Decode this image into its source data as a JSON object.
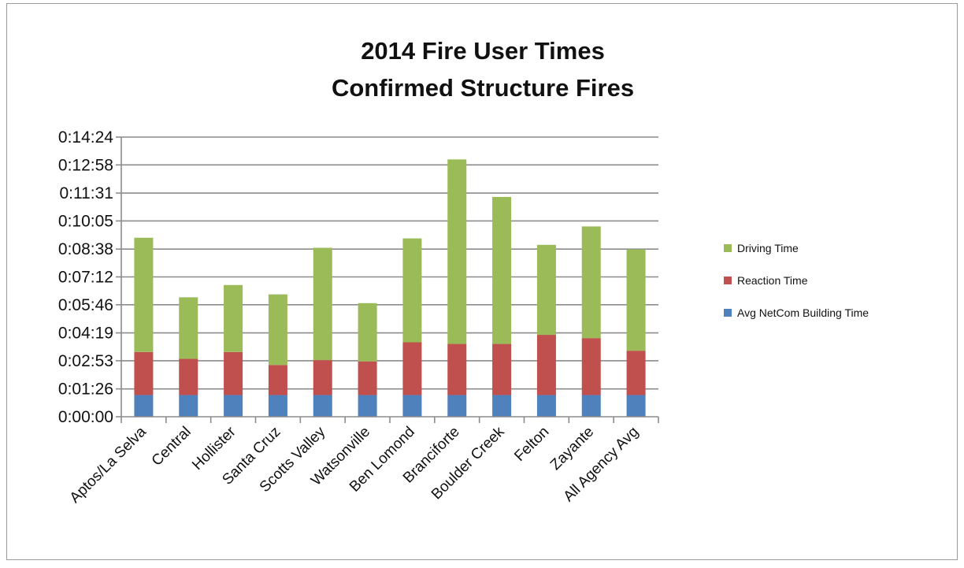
{
  "chart_data": {
    "type": "bar",
    "stacked": true,
    "title": [
      "2014 Fire User Times",
      "Confirmed Structure Fires"
    ],
    "xlabel": "",
    "ylabel": "",
    "categories": [
      "Aptos/La Selva",
      "Central",
      "Hollister",
      "Santa Cruz",
      "Scotts Valley",
      "Watsonville",
      "Ben Lomond",
      "Branciforte",
      "Boulder Creek",
      "Felton",
      "Zayante",
      "All Agency Avg"
    ],
    "y_unit": "seconds",
    "ylim": [
      0,
      864
    ],
    "yticks": [
      0,
      86,
      173,
      259,
      346,
      432,
      518,
      605,
      691,
      778,
      864
    ],
    "ytick_labels": [
      "0:00:00",
      "0:01:26",
      "0:02:53",
      "0:04:19",
      "0:05:46",
      "0:07:12",
      "0:08:38",
      "0:10:05",
      "0:11:31",
      "0:12:58",
      "0:14:24"
    ],
    "grid": true,
    "legend_position": "right",
    "series": [
      {
        "name": "Avg NetCom Building Time",
        "color": "#4f81bd",
        "values": [
          67,
          67,
          67,
          67,
          67,
          67,
          67,
          67,
          67,
          67,
          67,
          67
        ]
      },
      {
        "name": "Reaction Time",
        "color": "#c0504d",
        "values": [
          133,
          112,
          133,
          93,
          108,
          104,
          163,
          158,
          158,
          186,
          176,
          137
        ]
      },
      {
        "name": "Driving Time",
        "color": "#9bbb59",
        "values": [
          353,
          190,
          207,
          218,
          347,
          180,
          321,
          570,
          454,
          278,
          345,
          313
        ]
      }
    ]
  }
}
